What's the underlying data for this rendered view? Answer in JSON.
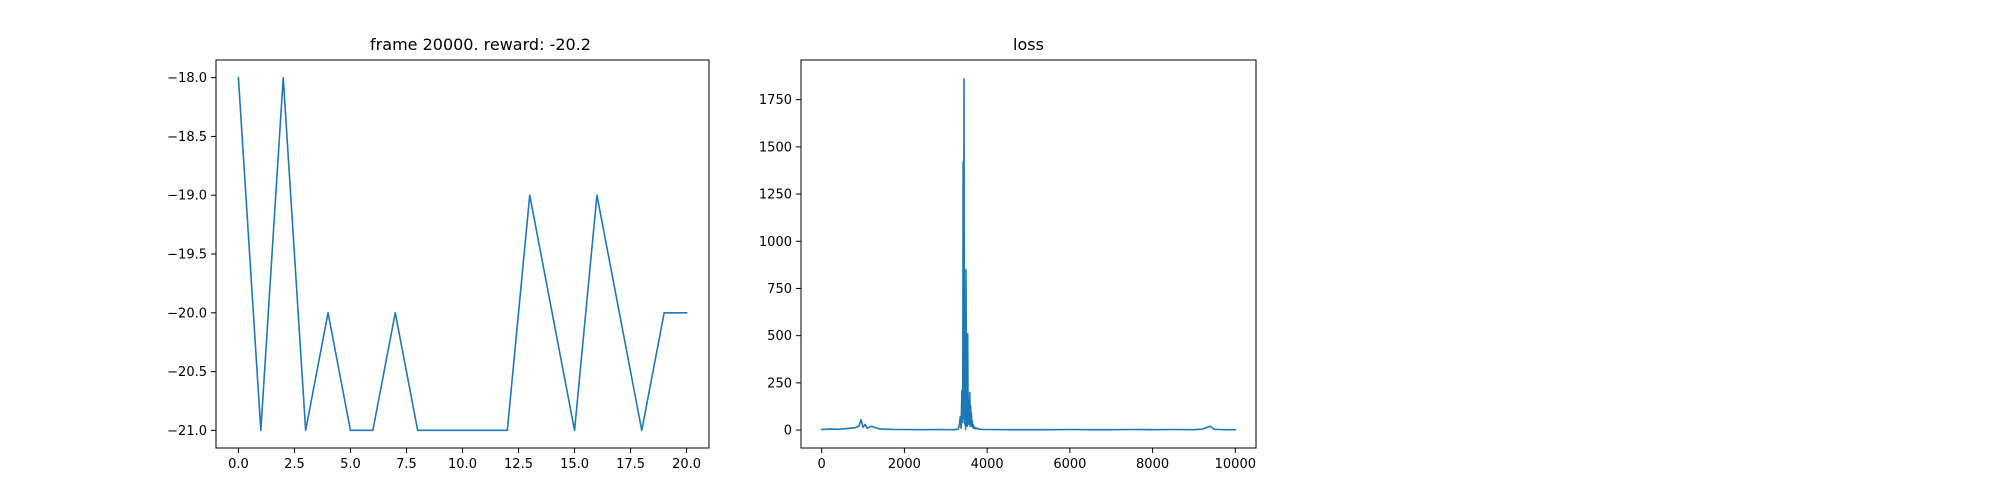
{
  "chart_data": [
    {
      "type": "line",
      "title": "frame 20000. reward: -20.2",
      "xlabel": "",
      "ylabel": "",
      "xlim": [
        -1.0,
        21.0
      ],
      "ylim": [
        -21.15,
        -17.85
      ],
      "xticks": [
        0.0,
        2.5,
        5.0,
        7.5,
        10.0,
        12.5,
        15.0,
        17.5,
        20.0
      ],
      "xtick_labels": [
        "0.0",
        "2.5",
        "5.0",
        "7.5",
        "10.0",
        "12.5",
        "15.0",
        "17.5",
        "20.0"
      ],
      "yticks": [
        -18.0,
        -18.5,
        -19.0,
        -19.5,
        -20.0,
        -20.5,
        -21.0
      ],
      "ytick_labels": [
        "−18.0",
        "−18.5",
        "−19.0",
        "−19.5",
        "−20.0",
        "−20.5",
        "−21.0"
      ],
      "grid": false,
      "color": "#1f77b4",
      "series": [
        {
          "x": [
            0,
            1,
            2,
            3,
            4,
            5,
            6,
            7,
            8,
            9,
            10,
            11,
            12,
            13,
            14,
            15,
            16,
            17,
            18,
            19,
            20
          ],
          "y": [
            -18,
            -21,
            -18,
            -21,
            -20,
            -21,
            -21,
            -20,
            -21,
            -21,
            -21,
            -21,
            -21,
            -19,
            -20,
            -21,
            -19,
            -20,
            -21,
            -20,
            -20
          ]
        }
      ]
    },
    {
      "type": "line",
      "title": "loss",
      "xlabel": "",
      "ylabel": "",
      "xlim": [
        -500,
        10500
      ],
      "ylim": [
        -95,
        1960
      ],
      "xticks": [
        0,
        2000,
        4000,
        6000,
        8000,
        10000
      ],
      "xtick_labels": [
        "0",
        "2000",
        "4000",
        "6000",
        "8000",
        "10000"
      ],
      "yticks": [
        0,
        250,
        500,
        750,
        1000,
        1250,
        1500,
        1750
      ],
      "ytick_labels": [
        "0",
        "250",
        "500",
        "750",
        "1000",
        "1250",
        "1500",
        "1750"
      ],
      "grid": false,
      "color": "#1f77b4",
      "series": [
        {
          "x": [
            0,
            200,
            400,
            600,
            800,
            900,
            950,
            1000,
            1050,
            1100,
            1200,
            1400,
            1600,
            1800,
            2000,
            2400,
            2800,
            3200,
            3300,
            3330,
            3350,
            3370,
            3390,
            3410,
            3420,
            3430,
            3440,
            3450,
            3460,
            3470,
            3480,
            3490,
            3500,
            3510,
            3520,
            3530,
            3540,
            3550,
            3560,
            3570,
            3580,
            3590,
            3600,
            3610,
            3620,
            3630,
            3640,
            3650,
            3660,
            3670,
            3680,
            3690,
            3700,
            3720,
            3740,
            3760,
            3780,
            3800,
            3850,
            3900,
            4000,
            4500,
            5000,
            5500,
            6000,
            6500,
            7000,
            7500,
            8000,
            8500,
            9000,
            9200,
            9300,
            9350,
            9400,
            9450,
            9500,
            9600,
            9800,
            10000
          ],
          "y": [
            3,
            6,
            4,
            8,
            12,
            20,
            55,
            15,
            30,
            10,
            20,
            6,
            4,
            3,
            3,
            2,
            3,
            2,
            5,
            30,
            70,
            10,
            210,
            40,
            1420,
            60,
            1860,
            200,
            30,
            400,
            5,
            850,
            40,
            200,
            20,
            510,
            40,
            150,
            30,
            80,
            200,
            20,
            130,
            40,
            90,
            20,
            50,
            15,
            30,
            10,
            20,
            8,
            15,
            8,
            12,
            6,
            8,
            5,
            4,
            3,
            3,
            2,
            2,
            2,
            3,
            2,
            2,
            3,
            2,
            3,
            2,
            5,
            12,
            18,
            20,
            10,
            4,
            3,
            2,
            2
          ]
        }
      ]
    }
  ]
}
